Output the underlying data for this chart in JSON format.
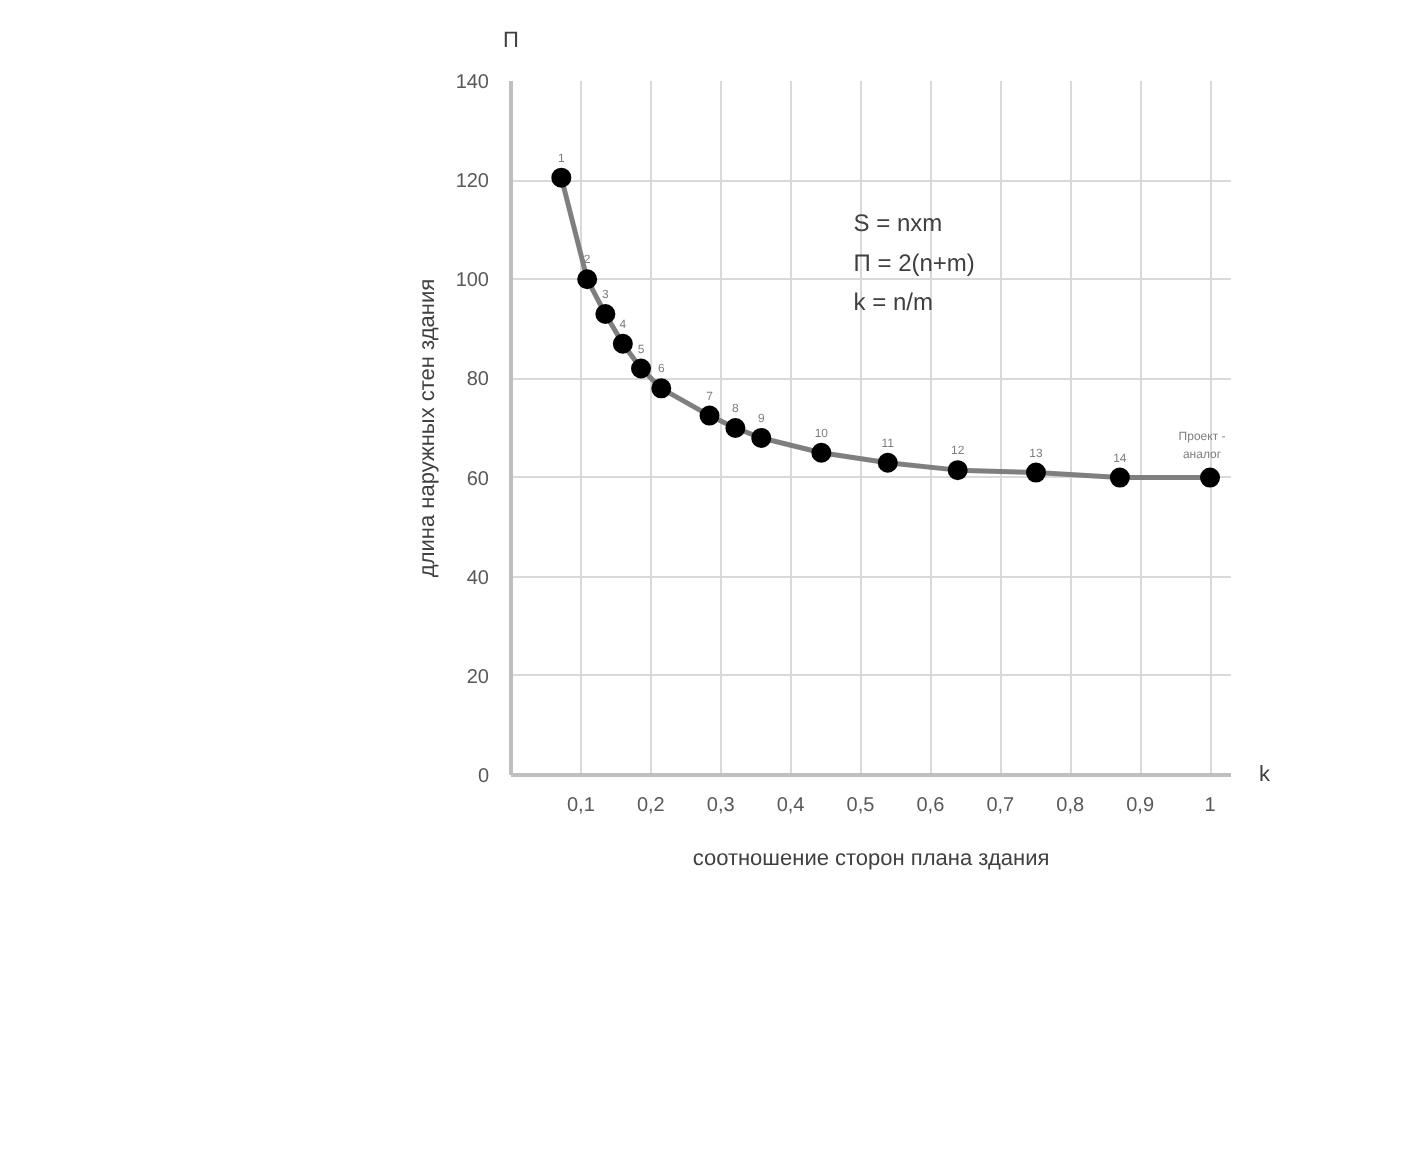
{
  "chart_data": {
    "type": "line",
    "xlabel": "соотношение сторон плана здания",
    "ylabel": "длина наружных стен здания",
    "x": [
      0.072,
      0.109,
      0.135,
      0.16,
      0.186,
      0.215,
      0.284,
      0.321,
      0.358,
      0.444,
      0.539,
      0.639,
      0.751,
      0.871,
      1.0
    ],
    "series": [
      {
        "color": "#7f7f7f",
        "values": [
          120.5,
          100,
          93,
          87,
          82,
          78,
          72.5,
          70,
          68,
          65,
          63,
          61.5,
          61,
          60,
          60
        ]
      }
    ],
    "marker": "circle",
    "line_style": "solid",
    "grid": true,
    "xlim": [
      0,
      1.03
    ],
    "ylim": [
      0,
      140
    ],
    "xticks": [
      {
        "value": 0.1,
        "label": "0,1"
      },
      {
        "value": 0.2,
        "label": "0,2"
      },
      {
        "value": 0.3,
        "label": "0,3"
      },
      {
        "value": 0.4,
        "label": "0,4"
      },
      {
        "value": 0.5,
        "label": "0,5"
      },
      {
        "value": 0.6,
        "label": "0,6"
      },
      {
        "value": 0.7,
        "label": "0,7"
      },
      {
        "value": 0.8,
        "label": "0,8"
      },
      {
        "value": 0.9,
        "label": "0,9"
      },
      {
        "value": 1,
        "label": "1"
      }
    ],
    "yticks": [
      0,
      20,
      40,
      60,
      80,
      100,
      120,
      140
    ],
    "annotations": [
      "S = nxm",
      "П = 2(n+m)",
      "k = n/m",
      "П",
      "k",
      {
        "text": "1",
        "x": 0.072,
        "y": 120.5
      },
      {
        "text": "2",
        "x": 0.109,
        "y": 100
      },
      {
        "text": "3",
        "x": 0.135,
        "y": 93
      },
      {
        "text": "4",
        "x": 0.16,
        "y": 87
      },
      {
        "text": "5",
        "x": 0.186,
        "y": 82
      },
      {
        "text": "6",
        "x": 0.215,
        "y": 78
      },
      {
        "text": "7",
        "x": 0.284,
        "y": 72.5
      },
      {
        "text": "8",
        "x": 0.321,
        "y": 70
      },
      {
        "text": "9",
        "x": 0.358,
        "y": 68
      },
      {
        "text": "10",
        "x": 0.444,
        "y": 65
      },
      {
        "text": "11",
        "x": 0.539,
        "y": 63
      },
      {
        "text": "12",
        "x": 0.639,
        "y": 61.5
      },
      {
        "text": "13",
        "x": 0.751,
        "y": 61
      },
      {
        "text": "14",
        "x": 0.871,
        "y": 60
      },
      {
        "text": "Проект - аналог",
        "x": 1.0,
        "y": 60
      }
    ]
  }
}
